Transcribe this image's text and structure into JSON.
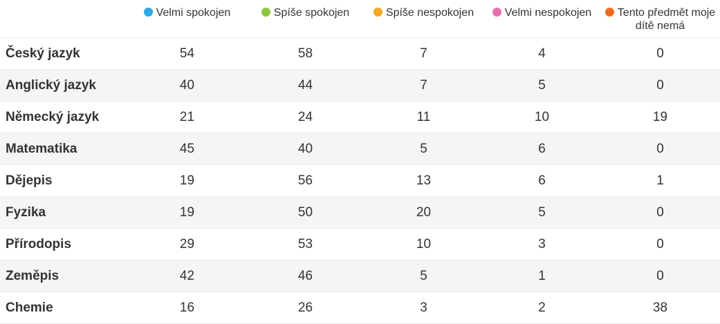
{
  "chart_data": {
    "type": "table",
    "series": [
      {
        "name": "Velmi spokojen",
        "color": "#29abe2"
      },
      {
        "name": "Spíše spokojen",
        "color": "#8dc63f"
      },
      {
        "name": "Spíše nespokojen",
        "color": "#f7a823"
      },
      {
        "name": "Velmi nespokojen",
        "color": "#e86fb0"
      },
      {
        "name": "Tento předmět moje dítě nemá",
        "color": "#f36b21"
      }
    ],
    "rows": [
      {
        "subject": "Český jazyk",
        "values": [
          54,
          58,
          7,
          4,
          0
        ]
      },
      {
        "subject": "Anglický jazyk",
        "values": [
          40,
          44,
          7,
          5,
          0
        ]
      },
      {
        "subject": "Německý jazyk",
        "values": [
          21,
          24,
          11,
          10,
          19
        ]
      },
      {
        "subject": "Matematika",
        "values": [
          45,
          40,
          5,
          6,
          0
        ]
      },
      {
        "subject": "Dějepis",
        "values": [
          19,
          56,
          13,
          6,
          1
        ]
      },
      {
        "subject": "Fyzika",
        "values": [
          19,
          50,
          20,
          5,
          0
        ]
      },
      {
        "subject": "Přírodopis",
        "values": [
          29,
          53,
          10,
          3,
          0
        ]
      },
      {
        "subject": "Zeměpis",
        "values": [
          42,
          46,
          5,
          1,
          0
        ]
      },
      {
        "subject": "Chemie",
        "values": [
          16,
          26,
          3,
          2,
          38
        ]
      }
    ]
  }
}
